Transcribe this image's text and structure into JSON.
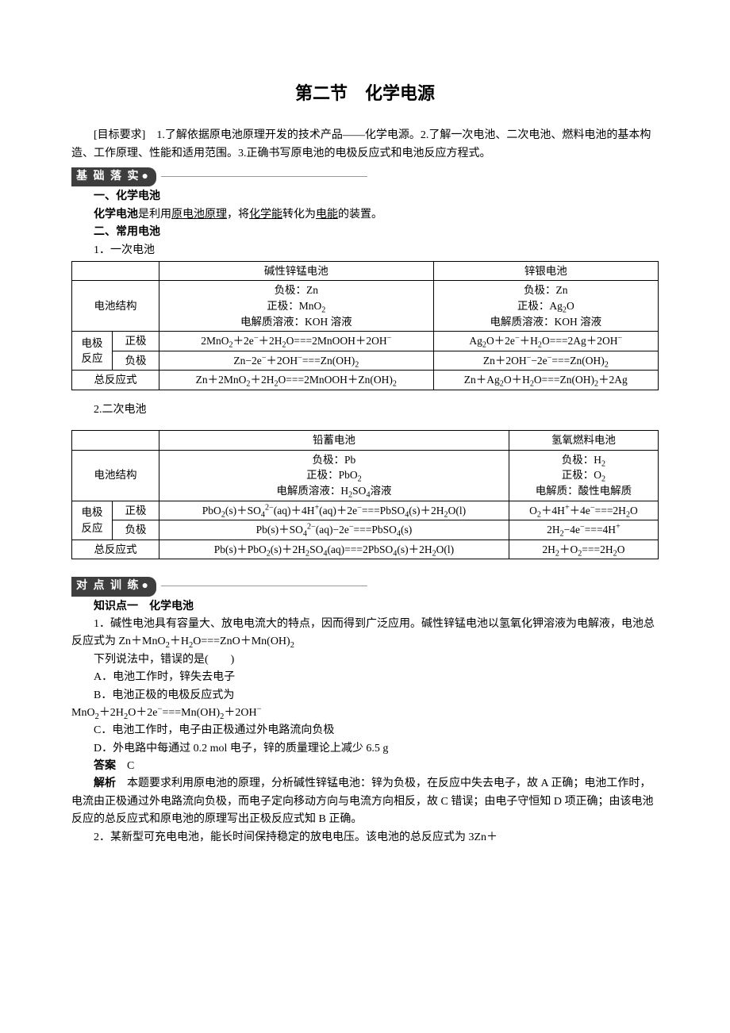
{
  "title": "第二节　化学电源",
  "objective": "[目标要求]　1.了解依据原电池原理开发的技术产品——化学电源。2.了解一次电池、二次电池、燃料电池的基本构造、工作原理、性能和适用范围。3.正确书写原电池的电极反应式和电池反应方程式。",
  "pill1": "基 础 落 实",
  "sec1_h1": "一、化学电池",
  "sec1_p1_a": "化学电池",
  "sec1_p1_b": "是利用",
  "sec1_p1_u1": "原电池原理",
  "sec1_p1_c": "，将",
  "sec1_p1_u2": "化学能",
  "sec1_p1_d": "转化为",
  "sec1_p1_u3": "电能",
  "sec1_p1_e": "的装置。",
  "sec2_h": "二、常用电池",
  "sec2_1": "1．一次电池",
  "sec2_2": "2.二次电池",
  "table1": {
    "header_col1": "",
    "header_col2": "碱性锌锰电池",
    "header_col3": "锌银电池",
    "structure_label": "电池结构",
    "structure_a": "负极：Zn<br>正极：MnO<sub>2</sub><br>电解质溶液：KOH 溶液",
    "structure_b": "负极：Zn<br>正极：Ag<sub>2</sub>O<br>电解质溶液：KOH 溶液",
    "electrode_label": "电极<br>反应",
    "pos_label": "正极",
    "neg_label": "负极",
    "pos_a": "2MnO<sub>2</sub>＋2e<sup>−</sup>＋2H<sub>2</sub>O===2MnOOH＋2OH<sup>−</sup>",
    "pos_b": "Ag<sub>2</sub>O＋2e<sup>−</sup>＋H<sub>2</sub>O===2Ag＋2OH<sup>−</sup>",
    "neg_a": "Zn−2e<sup>−</sup>＋2OH<sup>−</sup>===Zn(OH)<sub>2</sub>",
    "neg_b": "Zn＋2OH<sup>−</sup>−2e<sup>−</sup>===Zn(OH)<sub>2</sub>",
    "total_label": "总反应式",
    "total_a": "Zn＋2MnO<sub>2</sub>＋2H<sub>2</sub>O===2MnOOH＋Zn(OH)<sub>2</sub>",
    "total_b": "Zn＋Ag<sub>2</sub>O＋H<sub>2</sub>O===Zn(OH)<sub>2</sub>＋2Ag"
  },
  "table2": {
    "header_col2": "铅蓄电池",
    "header_col3": "氢氧燃料电池",
    "structure_label": "电池结构",
    "structure_a": "负极：Pb<br>正极：PbO<sub>2</sub><br>电解质溶液：H<sub>2</sub>SO<sub>4</sub>溶液",
    "structure_b": "负极：H<sub>2</sub><br>正极：O<sub>2</sub><br>电解质：酸性电解质",
    "electrode_label": "电极<br>反应",
    "pos_label": "正极",
    "neg_label": "负极",
    "pos_a": "PbO<sub>2</sub>(s)＋SO<sub>4</sub><sup>2−</sup>(aq)＋4H<sup>+</sup>(aq)＋2e<sup>−</sup>===PbSO<sub>4</sub>(s)＋2H<sub>2</sub>O(l)",
    "pos_b": "O<sub>2</sub>＋4H<sup>+</sup>＋4e<sup>−</sup>===2H<sub>2</sub>O",
    "neg_a": "Pb(s)＋SO<sub>4</sub><sup>2−</sup>(aq)−2e<sup>−</sup>===PbSO<sub>4</sub>(s)",
    "neg_b": "2H<sub>2</sub>−4e<sup>−</sup>===4H<sup>+</sup>",
    "total_label": "总反应式",
    "total_a": "Pb(s)＋PbO<sub>2</sub>(s)＋2H<sub>2</sub>SO<sub>4</sub>(aq)===2PbSO<sub>4</sub>(s)＋2H<sub>2</sub>O(l)",
    "total_b": "2H<sub>2</sub>＋O<sub>2</sub>===2H<sub>2</sub>O"
  },
  "pill2": "对 点 训 练",
  "kp1_h": "知识点一　化学电池",
  "q1_stem": "1．碱性电池具有容量大、放电电流大的特点，因而得到广泛应用。碱性锌锰电池以氢氧化钾溶液为电解液，电池总反应式为 Zn＋MnO<sub>2</sub>＋H<sub>2</sub>O===ZnO＋Mn(OH)<sub>2</sub>",
  "q1_prompt": "下列说法中，错误的是(　　)",
  "q1_A": "A．电池工作时，锌失去电子",
  "q1_B": "B．电池正极的电极反应式为",
  "q1_B2": "MnO<sub>2</sub>＋2H<sub>2</sub>O＋2e<sup>−</sup>===Mn(OH)<sub>2</sub>＋2OH<sup>−</sup>",
  "q1_C": "C．电池工作时，电子由正极通过外电路流向负极",
  "q1_D": "D．外电路中每通过 0.2 mol 电子，锌的质量理论上减少 6.5 g",
  "q1_ans_label": "答案",
  "q1_ans": "C",
  "q1_exp_label": "解析",
  "q1_exp": "本题要求利用原电池的原理，分析碱性锌锰电池：锌为负极，在反应中失去电子，故 A 正确；电池工作时，电流由正极通过外电路流向负极，而电子定向移动方向与电流方向相反，故 C 错误；由电子守恒知 D 项正确；由该电池反应的总反应式和原电池的原理写出正极反应式知 B 正确。",
  "q2_stem": "2．某新型可充电电池，能长时间保持稳定的放电电压。该电池的总反应式为 3Zn＋"
}
